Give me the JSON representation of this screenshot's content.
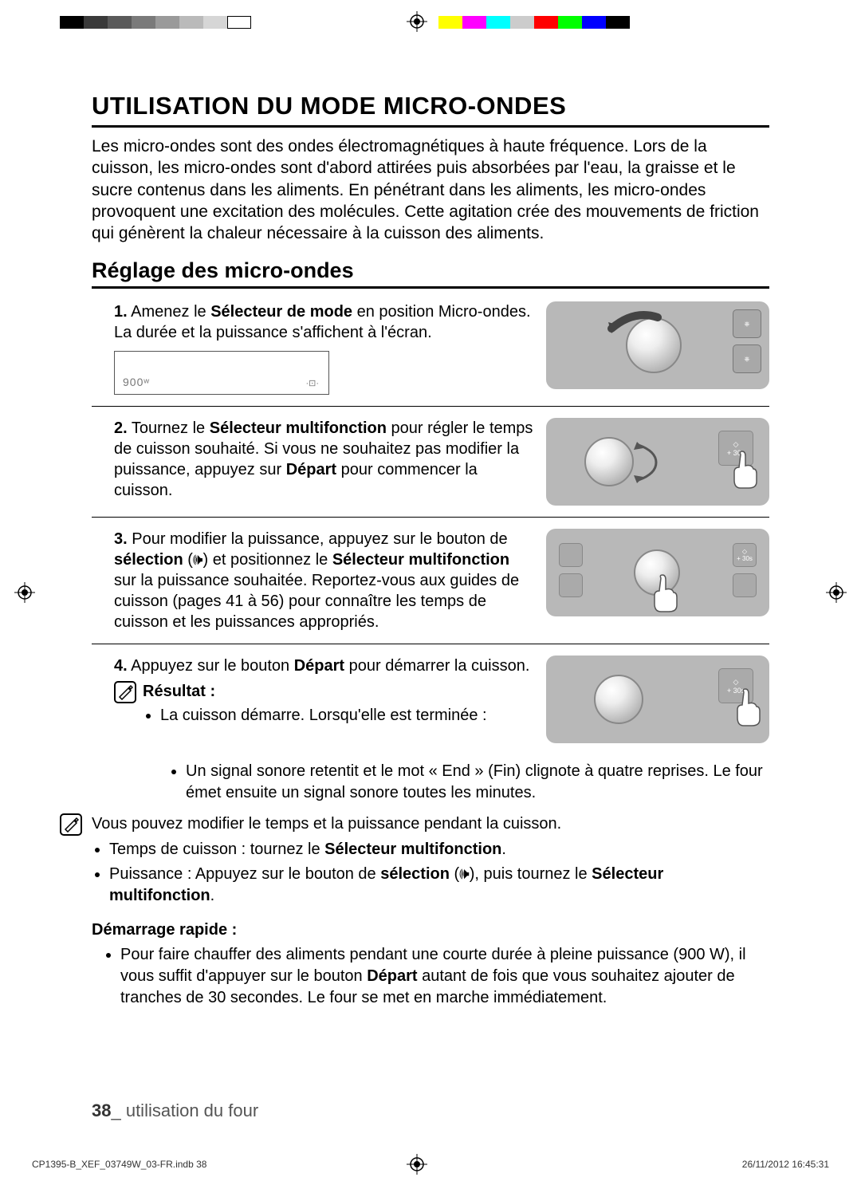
{
  "colorbar_left": [
    "#000000",
    "#3a3a3a",
    "#5a5a5a",
    "#7a7a7a",
    "#9a9a9a",
    "#bababa",
    "#d6d6d6",
    "#ffffff"
  ],
  "colorbar_right": [
    "#ffff00",
    "#ff00ff",
    "#00ffff",
    "#cccccc",
    "#ff0000",
    "#00ff00",
    "#0000ff",
    "#000000"
  ],
  "title": "UTILISATION DU MODE MICRO-ONDES",
  "intro": "Les micro-ondes sont des ondes électromagnétiques à haute fréquence. Lors de la cuisson, les micro-ondes sont d'abord attirées puis absorbées par l'eau, la graisse et le sucre contenus dans les aliments. En pénétrant dans les aliments, les micro-ondes provoquent une excitation des molécules. Cette agitation crée des mouvements de friction qui génèrent la chaleur nécessaire à la cuisson des aliments.",
  "subtitle": "Réglage des micro-ondes",
  "step1_num": "1.",
  "step1_a": "Amenez le ",
  "step1_b": "Sélecteur de mode",
  "step1_c": " en position Micro-ondes. La durée et la puissance s'affichent à l'écran.",
  "display_text": "900ʷ",
  "step2_num": "2.",
  "step2_a": "Tournez le ",
  "step2_b": "Sélecteur multifonction",
  "step2_c": " pour régler le temps de cuisson souhaité. Si vous ne souhaitez pas modifier la puissance, appuyez sur ",
  "step2_d": "Départ",
  "step2_e": " pour commencer la cuisson.",
  "step3_num": "3.",
  "step3_a": "Pour modifier la puissance, appuyez sur le bouton de ",
  "step3_b": "sélection",
  "step3_c": " (🕪) et positionnez le ",
  "step3_d": "Sélecteur multifonction",
  "step3_e": " sur la puissance souhaitée. Reportez-vous aux guides de cuisson (pages 41 à 56) pour connaître les temps de cuisson et les puissances appropriés.",
  "step4_num": "4.",
  "step4_a": "Appuyez sur le bouton ",
  "step4_b": "Départ",
  "step4_c": " pour démarrer la cuisson.",
  "result_label": "Résultat :",
  "result_bullet1": "La cuisson démarre. Lorsqu'elle est terminée :",
  "result_bullet2": "Un signal sonore retentit et le mot « End » (Fin) clignote à quatre reprises. Le four émet ensuite un signal sonore toutes les minutes.",
  "note1": "Vous pouvez modifier le temps et la puissance pendant la cuisson.",
  "note1_b1a": "Temps de cuisson : tournez le ",
  "note1_b1b": "Sélecteur multifonction",
  "note1_b1c": ".",
  "note1_b2a": "Puissance : Appuyez sur le bouton de ",
  "note1_b2b": "sélection",
  "note1_b2c": " (🕪), puis tournez le ",
  "note1_b2d": "Sélecteur multifonction",
  "note1_b2e": ".",
  "quick_label": "Démarrage rapide :",
  "quick_a": "Pour faire chauffer des aliments pendant une courte durée à pleine puissance (900 W), il vous suffit d'appuyer sur le bouton ",
  "quick_b": "Départ",
  "quick_c": " autant de fois que vous souhaitez ajouter de tranches de 30 secondes. Le four se met en marche immédiatement.",
  "page_num": "38",
  "page_label": "_ utilisation du four",
  "print_file": "CP1395-B_XEF_03749W_03-FR.indb   38",
  "print_date": "26/11/2012   16:45:31",
  "btn_30s": "+ 30s"
}
